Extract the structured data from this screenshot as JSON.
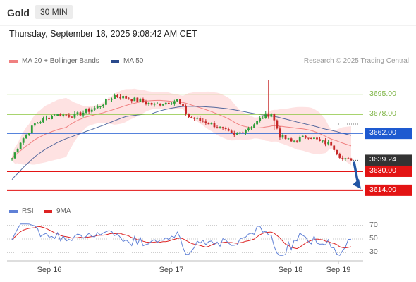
{
  "header": {
    "instrument": "Gold",
    "timeframe": "30 MIN",
    "datetime": "Thursday, September 18, 2025 9:08:42 AM CET"
  },
  "legend": {
    "ma_bb": {
      "label": "MA 20 + Bollinger Bands",
      "color": "#f08080"
    },
    "ma50": {
      "label": "MA 50",
      "color": "#2a4a8c"
    },
    "credit": "Research © 2025 Trading Central"
  },
  "rsi_legend": {
    "rsi": {
      "label": "RSI",
      "color": "#5f80d6"
    },
    "ma9": {
      "label": "9MA",
      "color": "#dd2222"
    }
  },
  "chart_data": [
    {
      "type": "candlestick",
      "title": "Gold",
      "timeframe": "30 MIN",
      "ylim": [
        3605,
        3718
      ],
      "x_ticks": [
        "Sep 16",
        "Sep 17",
        "Sep 18",
        "Sep 19"
      ],
      "levels": [
        {
          "value": 3695.0,
          "label": "3695.00",
          "kind": "resistance",
          "color": "#8cc63f"
        },
        {
          "value": 3678.0,
          "label": "3678.00",
          "kind": "resistance",
          "color": "#8cc63f"
        },
        {
          "value": 3662.0,
          "label": "3662.00",
          "kind": "pivot",
          "color": "#1e5ad0"
        },
        {
          "value": 3639.24,
          "label": "3639.24",
          "kind": "last_price",
          "color": "#333333"
        },
        {
          "value": 3630.0,
          "label": "3630.00",
          "kind": "support",
          "color": "#e31414"
        },
        {
          "value": 3614.0,
          "label": "3614.00",
          "kind": "support",
          "color": "#e31414"
        }
      ],
      "up_color": "#2e9e3a",
      "down_color": "#c62828",
      "forecast_arrow": {
        "direction": "down",
        "target": 3614.0,
        "color": "#2255a4"
      },
      "series": [
        {
          "name": "MA 20 + Bollinger Bands",
          "kind": "line+band",
          "color": "#f08080",
          "band_color": "#fdd5d5"
        },
        {
          "name": "MA 50",
          "kind": "line",
          "color": "#2a4a8c"
        }
      ]
    },
    {
      "type": "line",
      "title": "RSI",
      "ylim": [
        20,
        80
      ],
      "y_ticks": [
        70,
        50,
        30
      ],
      "series": [
        {
          "name": "RSI",
          "color": "#5f80d6"
        },
        {
          "name": "9MA",
          "color": "#dd2222"
        }
      ]
    }
  ]
}
